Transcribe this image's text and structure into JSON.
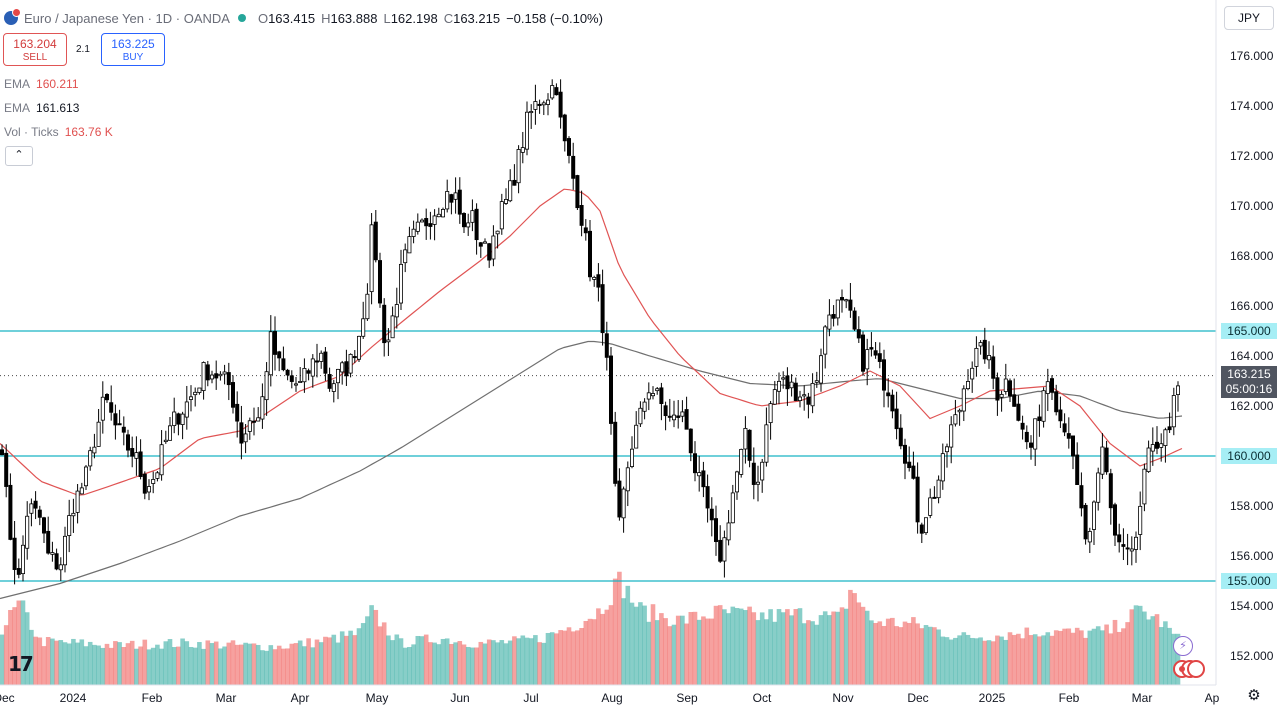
{
  "header": {
    "title": "Euro / Japanese Yen · 1D · OANDA",
    "open_label": "O",
    "open": "163.415",
    "high_label": "H",
    "high": "163.888",
    "low_label": "L",
    "low": "162.198",
    "close_label": "C",
    "close": "163.215",
    "change": "−0.158 (−0.10%)"
  },
  "trade": {
    "sell_price": "163.204",
    "sell_label": "SELL",
    "spread": "2.1",
    "buy_price": "163.225",
    "buy_label": "BUY"
  },
  "indicators": {
    "ema1_label": "EMA",
    "ema1_value": "160.211",
    "ema2_label": "EMA",
    "ema2_value": "161.613",
    "vol_label": "Vol · Ticks",
    "vol_value": "163.76 K"
  },
  "currency": "JPY",
  "price_tag": {
    "price": "163.215",
    "countdown": "05:00:16"
  },
  "levels": [
    "165.000",
    "160.000",
    "155.000"
  ],
  "colors": {
    "up": "#26a69a",
    "down": "#ef5350",
    "level": "#19b4c4",
    "ema_fast": "#e05454",
    "ema_slow": "#707070"
  },
  "icons": {
    "collapse": "chevron-up-icon",
    "settings": "gear-icon",
    "logo": "tradingview-logo-icon"
  },
  "chart_data": {
    "type": "candlestick",
    "title": "Euro / Japanese Yen · 1D · OANDA",
    "ylim": [
      151,
      177
    ],
    "y_ticks": [
      "176.000",
      "174.000",
      "172.000",
      "170.000",
      "168.000",
      "166.000",
      "164.000",
      "162.000",
      "160.000",
      "158.000",
      "156.000",
      "154.000",
      "152.000"
    ],
    "x_ticks": [
      "Dec",
      "2024",
      "Feb",
      "Mar",
      "Apr",
      "May",
      "Jun",
      "Jul",
      "Aug",
      "Sep",
      "Oct",
      "Nov",
      "Dec",
      "2025",
      "Feb",
      "Mar",
      "Ap"
    ],
    "price_anchors": [
      [
        0,
        161.5
      ],
      [
        8,
        157.5
      ],
      [
        18,
        154.8
      ],
      [
        28,
        158.0
      ],
      [
        40,
        157.5
      ],
      [
        48,
        156.0
      ],
      [
        60,
        155.6
      ],
      [
        72,
        158.0
      ],
      [
        85,
        159.0
      ],
      [
        95,
        160.8
      ],
      [
        105,
        162.3
      ],
      [
        115,
        161.2
      ],
      [
        125,
        160.5
      ],
      [
        135,
        160.0
      ],
      [
        145,
        158.8
      ],
      [
        155,
        159.2
      ],
      [
        165,
        160.5
      ],
      [
        175,
        161.5
      ],
      [
        185,
        162.0
      ],
      [
        195,
        162.6
      ],
      [
        205,
        163.5
      ],
      [
        215,
        163.3
      ],
      [
        230,
        162.8
      ],
      [
        242,
        160.6
      ],
      [
        250,
        161.5
      ],
      [
        260,
        161.5
      ],
      [
        270,
        164.7
      ],
      [
        280,
        163.5
      ],
      [
        290,
        163.0
      ],
      [
        300,
        162.8
      ],
      [
        310,
        163.5
      ],
      [
        320,
        164.2
      ],
      [
        330,
        162.8
      ],
      [
        340,
        163.3
      ],
      [
        350,
        163.7
      ],
      [
        360,
        165.0
      ],
      [
        368,
        167.0
      ],
      [
        373,
        169.5
      ],
      [
        377,
        167.5
      ],
      [
        382,
        165.0
      ],
      [
        388,
        164.6
      ],
      [
        395,
        166.0
      ],
      [
        402,
        167.5
      ],
      [
        410,
        168.5
      ],
      [
        418,
        169.0
      ],
      [
        428,
        169.5
      ],
      [
        438,
        170.0
      ],
      [
        446,
        170.5
      ],
      [
        456,
        170.3
      ],
      [
        464,
        169.0
      ],
      [
        470,
        169.8
      ],
      [
        478,
        168.7
      ],
      [
        488,
        168.0
      ],
      [
        498,
        169.5
      ],
      [
        508,
        170.3
      ],
      [
        518,
        171.8
      ],
      [
        528,
        173.5
      ],
      [
        538,
        174.2
      ],
      [
        548,
        174.5
      ],
      [
        556,
        175.0
      ],
      [
        562,
        172.8
      ],
      [
        568,
        172.0
      ],
      [
        575,
        170.8
      ],
      [
        582,
        169.5
      ],
      [
        590,
        167.5
      ],
      [
        598,
        166.5
      ],
      [
        604,
        165.0
      ],
      [
        608,
        163.0
      ],
      [
        612,
        160.3
      ],
      [
        616,
        158.0
      ],
      [
        620,
        157.0
      ],
      [
        625,
        159.0
      ],
      [
        632,
        160.5
      ],
      [
        640,
        161.5
      ],
      [
        648,
        162.8
      ],
      [
        655,
        162.5
      ],
      [
        662,
        162.0
      ],
      [
        672,
        161.3
      ],
      [
        680,
        161.8
      ],
      [
        688,
        161.0
      ],
      [
        695,
        159.5
      ],
      [
        702,
        158.5
      ],
      [
        710,
        157.5
      ],
      [
        716,
        156.2
      ],
      [
        722,
        156.0
      ],
      [
        730,
        158.0
      ],
      [
        738,
        159.5
      ],
      [
        746,
        160.8
      ],
      [
        752,
        159.2
      ],
      [
        758,
        159.0
      ],
      [
        764,
        160.5
      ],
      [
        770,
        162.0
      ],
      [
        778,
        163.0
      ],
      [
        788,
        162.8
      ],
      [
        798,
        162.6
      ],
      [
        808,
        162.3
      ],
      [
        816,
        163.0
      ],
      [
        822,
        164.5
      ],
      [
        830,
        165.8
      ],
      [
        838,
        166.0
      ],
      [
        846,
        165.9
      ],
      [
        852,
        165.3
      ],
      [
        858,
        164.4
      ],
      [
        864,
        163.7
      ],
      [
        870,
        164.3
      ],
      [
        876,
        163.8
      ],
      [
        882,
        163.2
      ],
      [
        890,
        162.6
      ],
      [
        898,
        161.2
      ],
      [
        906,
        160.0
      ],
      [
        914,
        158.6
      ],
      [
        920,
        157.0
      ],
      [
        926,
        157.8
      ],
      [
        934,
        158.5
      ],
      [
        942,
        159.5
      ],
      [
        950,
        161.0
      ],
      [
        958,
        161.6
      ],
      [
        966,
        163.2
      ],
      [
        975,
        164.0
      ],
      [
        985,
        164.2
      ],
      [
        990,
        163.5
      ],
      [
        998,
        162.5
      ],
      [
        1006,
        163.0
      ],
      [
        1014,
        162.4
      ],
      [
        1022,
        161.0
      ],
      [
        1030,
        160.2
      ],
      [
        1038,
        161.5
      ],
      [
        1046,
        163.2
      ],
      [
        1052,
        163.0
      ],
      [
        1060,
        161.5
      ],
      [
        1068,
        161.2
      ],
      [
        1074,
        159.3
      ],
      [
        1080,
        158.0
      ],
      [
        1088,
        156.2
      ],
      [
        1095,
        158.0
      ],
      [
        1102,
        160.3
      ],
      [
        1108,
        159.0
      ],
      [
        1114,
        157.0
      ],
      [
        1120,
        156.5
      ],
      [
        1126,
        156.3
      ],
      [
        1134,
        156.0
      ],
      [
        1140,
        157.8
      ],
      [
        1146,
        159.8
      ],
      [
        1152,
        160.2
      ],
      [
        1158,
        159.8
      ],
      [
        1164,
        161.2
      ],
      [
        1170,
        160.6
      ],
      [
        1176,
        162.8
      ],
      [
        1182,
        163.2
      ]
    ],
    "volume_profile": [
      [
        0,
        0.52
      ],
      [
        20,
        0.78
      ],
      [
        40,
        0.42
      ],
      [
        80,
        0.4
      ],
      [
        120,
        0.38
      ],
      [
        160,
        0.4
      ],
      [
        200,
        0.4
      ],
      [
        240,
        0.38
      ],
      [
        280,
        0.37
      ],
      [
        320,
        0.42
      ],
      [
        360,
        0.5
      ],
      [
        372,
        0.7
      ],
      [
        400,
        0.4
      ],
      [
        440,
        0.45
      ],
      [
        480,
        0.4
      ],
      [
        520,
        0.42
      ],
      [
        545,
        0.46
      ],
      [
        575,
        0.58
      ],
      [
        600,
        0.72
      ],
      [
        612,
        0.9
      ],
      [
        620,
        1.0
      ],
      [
        640,
        0.72
      ],
      [
        680,
        0.62
      ],
      [
        720,
        0.7
      ],
      [
        760,
        0.66
      ],
      [
        800,
        0.68
      ],
      [
        840,
        0.64
      ],
      [
        852,
        0.94
      ],
      [
        870,
        0.62
      ],
      [
        920,
        0.58
      ],
      [
        960,
        0.46
      ],
      [
        1000,
        0.48
      ],
      [
        1040,
        0.52
      ],
      [
        1080,
        0.5
      ],
      [
        1110,
        0.52
      ],
      [
        1140,
        0.72
      ],
      [
        1160,
        0.62
      ],
      [
        1180,
        0.42
      ]
    ],
    "series": [
      {
        "name": "EMA",
        "value_last": 160.211
      },
      {
        "name": "EMA",
        "value_last": 161.613
      },
      {
        "name": "Vol · Ticks",
        "value_last": "163.76 K"
      }
    ],
    "ema_fast_anchors": [
      [
        0,
        160.5
      ],
      [
        40,
        159.0
      ],
      [
        80,
        158.4
      ],
      [
        110,
        158.8
      ],
      [
        160,
        159.5
      ],
      [
        200,
        160.7
      ],
      [
        240,
        161.0
      ],
      [
        270,
        161.8
      ],
      [
        300,
        162.6
      ],
      [
        340,
        163.2
      ],
      [
        370,
        164.3
      ],
      [
        400,
        165.3
      ],
      [
        440,
        166.6
      ],
      [
        480,
        167.8
      ],
      [
        510,
        168.8
      ],
      [
        540,
        170.0
      ],
      [
        565,
        170.7
      ],
      [
        585,
        170.5
      ],
      [
        600,
        169.8
      ],
      [
        620,
        167.5
      ],
      [
        650,
        165.5
      ],
      [
        680,
        164.0
      ],
      [
        720,
        162.5
      ],
      [
        760,
        162.0
      ],
      [
        800,
        162.2
      ],
      [
        840,
        162.8
      ],
      [
        870,
        163.4
      ],
      [
        900,
        162.8
      ],
      [
        930,
        161.5
      ],
      [
        960,
        162.0
      ],
      [
        990,
        162.6
      ],
      [
        1020,
        162.7
      ],
      [
        1050,
        162.8
      ],
      [
        1080,
        162.0
      ],
      [
        1110,
        160.5
      ],
      [
        1140,
        159.6
      ],
      [
        1160,
        159.9
      ],
      [
        1182,
        160.3
      ]
    ],
    "ema_slow_anchors": [
      [
        0,
        154.3
      ],
      [
        60,
        154.9
      ],
      [
        120,
        155.7
      ],
      [
        180,
        156.6
      ],
      [
        240,
        157.6
      ],
      [
        300,
        158.3
      ],
      [
        360,
        159.4
      ],
      [
        400,
        160.3
      ],
      [
        440,
        161.3
      ],
      [
        480,
        162.3
      ],
      [
        520,
        163.3
      ],
      [
        560,
        164.3
      ],
      [
        590,
        164.6
      ],
      [
        610,
        164.5
      ],
      [
        650,
        164.0
      ],
      [
        700,
        163.4
      ],
      [
        750,
        162.9
      ],
      [
        800,
        162.8
      ],
      [
        850,
        163.0
      ],
      [
        880,
        163.1
      ],
      [
        920,
        162.7
      ],
      [
        960,
        162.3
      ],
      [
        1000,
        162.3
      ],
      [
        1040,
        162.6
      ],
      [
        1080,
        162.4
      ],
      [
        1120,
        161.8
      ],
      [
        1160,
        161.5
      ],
      [
        1182,
        161.6
      ]
    ]
  }
}
